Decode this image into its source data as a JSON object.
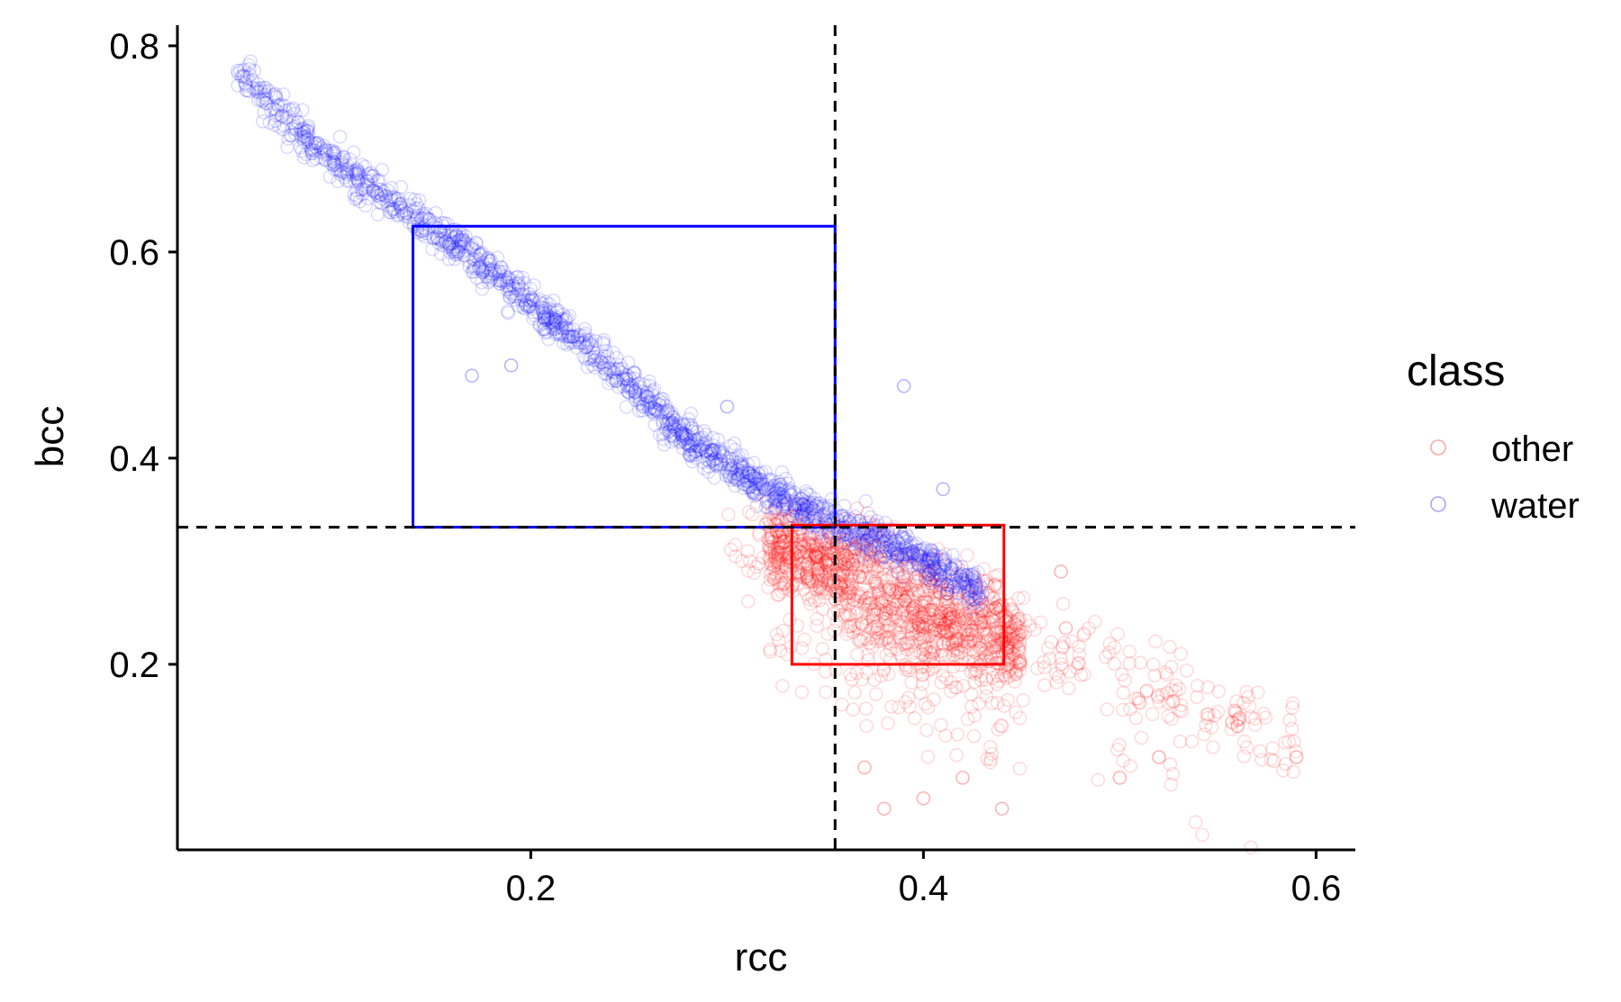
{
  "chart_data": {
    "type": "scatter",
    "title": "",
    "xlabel": "rcc",
    "ylabel": "bcc",
    "xlim": [
      0.02,
      0.62
    ],
    "ylim": [
      0.02,
      0.82
    ],
    "x_ticks": [
      0.2,
      0.4,
      0.6
    ],
    "x_tick_labels": [
      "0.2",
      "0.4",
      "0.6"
    ],
    "y_ticks": [
      0.2,
      0.4,
      0.6,
      0.8
    ],
    "y_tick_labels": [
      "0.2",
      "0.4",
      "0.6",
      "0.8"
    ],
    "grid": false,
    "legend": {
      "title": "class",
      "position": "right",
      "entries": [
        {
          "label": "other",
          "color": "#ff0000"
        },
        {
          "label": "water",
          "color": "#0000ff"
        }
      ]
    },
    "series": [
      {
        "name": "other",
        "color": "#ff0000",
        "marker": "open-circle",
        "opacity": 0.15,
        "trend": [
          [
            0.3,
            0.32
          ],
          [
            0.33,
            0.31
          ],
          [
            0.36,
            0.29
          ],
          [
            0.4,
            0.25
          ],
          [
            0.44,
            0.23
          ],
          [
            0.48,
            0.21
          ],
          [
            0.52,
            0.18
          ],
          [
            0.58,
            0.13
          ]
        ],
        "dense_region": {
          "x": [
            0.3,
            0.46
          ],
          "y": [
            0.18,
            0.34
          ]
        },
        "sample_outliers": [
          {
            "x": 0.38,
            "y": 0.06
          },
          {
            "x": 0.4,
            "y": 0.07
          },
          {
            "x": 0.42,
            "y": 0.09
          },
          {
            "x": 0.44,
            "y": 0.06
          },
          {
            "x": 0.5,
            "y": 0.09
          },
          {
            "x": 0.52,
            "y": 0.11
          },
          {
            "x": 0.56,
            "y": 0.14
          },
          {
            "x": 0.59,
            "y": 0.11
          },
          {
            "x": 0.47,
            "y": 0.29
          },
          {
            "x": 0.37,
            "y": 0.1
          }
        ]
      },
      {
        "name": "water",
        "color": "#0000ff",
        "marker": "open-circle",
        "opacity": 0.15,
        "trend": [
          [
            0.05,
            0.78
          ],
          [
            0.08,
            0.72
          ],
          [
            0.12,
            0.66
          ],
          [
            0.16,
            0.61
          ],
          [
            0.2,
            0.55
          ],
          [
            0.24,
            0.49
          ],
          [
            0.28,
            0.42
          ],
          [
            0.32,
            0.37
          ],
          [
            0.35,
            0.34
          ],
          [
            0.38,
            0.32
          ],
          [
            0.4,
            0.3
          ],
          [
            0.43,
            0.27
          ]
        ],
        "dense_region": {
          "x": [
            0.1,
            0.36
          ],
          "y": [
            0.34,
            0.7
          ]
        },
        "sample_outliers": [
          {
            "x": 0.39,
            "y": 0.47
          },
          {
            "x": 0.41,
            "y": 0.37
          },
          {
            "x": 0.19,
            "y": 0.49
          },
          {
            "x": 0.17,
            "y": 0.48
          },
          {
            "x": 0.3,
            "y": 0.45
          }
        ]
      }
    ],
    "annotations": {
      "reference_lines": [
        {
          "orientation": "vertical",
          "x": 0.355,
          "style": "dashed",
          "color": "#000000"
        },
        {
          "orientation": "horizontal",
          "y": 0.333,
          "style": "dashed",
          "color": "#000000"
        }
      ],
      "rectangles": [
        {
          "series": "water",
          "color": "#0000ff",
          "x": [
            0.14,
            0.355
          ],
          "y": [
            0.333,
            0.625
          ]
        },
        {
          "series": "other",
          "color": "#ff0000",
          "x": [
            0.333,
            0.441
          ],
          "y": [
            0.2,
            0.335
          ]
        }
      ]
    }
  }
}
